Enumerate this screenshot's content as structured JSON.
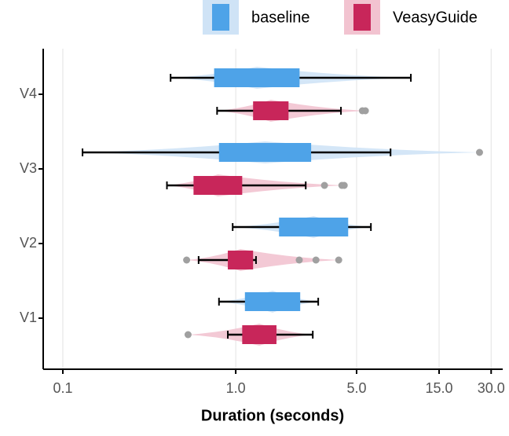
{
  "chart_data": {
    "type": "box",
    "x_label": "Duration (seconds)",
    "categories": [
      "V1",
      "V2",
      "V3",
      "V4"
    ],
    "xscale": "log",
    "xlim": [
      0.077,
      35
    ],
    "xticks": [
      0.1,
      {
        "value": 1,
        "label": "1.0"
      },
      {
        "value": 5,
        "label": "5.0"
      },
      {
        "value": 15,
        "label": "15.0"
      },
      {
        "value": 30,
        "label": "30.0"
      }
    ],
    "grid": true,
    "legend": "top-right",
    "series": [
      {
        "name": "baseline",
        "color": "#4ea3e8",
        "violin_color": "#cfe3f6",
        "low": [
          0.8,
          0.96,
          0.13,
          0.42
        ],
        "q1": [
          1.13,
          1.78,
          0.8,
          0.75
        ],
        "q3": [
          2.36,
          4.47,
          2.73,
          2.34
        ],
        "high": [
          3.0,
          6.05,
          7.86,
          10.3
        ],
        "outliers": [
          [],
          [],
          [
            25.7
          ],
          []
        ]
      },
      {
        "name": "VeasyGuide",
        "color": "#c8265a",
        "violin_color": "#f2c3d0",
        "low": [
          0.9,
          0.61,
          0.4,
          0.78
        ],
        "q1": [
          1.09,
          0.9,
          0.57,
          1.26
        ],
        "q3": [
          1.72,
          1.26,
          1.09,
          2.02
        ],
        "high": [
          2.79,
          1.31,
          2.54,
          4.06
        ],
        "outliers": [
          [
            0.53
          ],
          [
            0.52,
            2.33,
            2.91,
            3.94
          ],
          [
            3.26,
            4.11,
            4.24
          ],
          [
            5.4,
            5.62
          ]
        ]
      }
    ]
  }
}
